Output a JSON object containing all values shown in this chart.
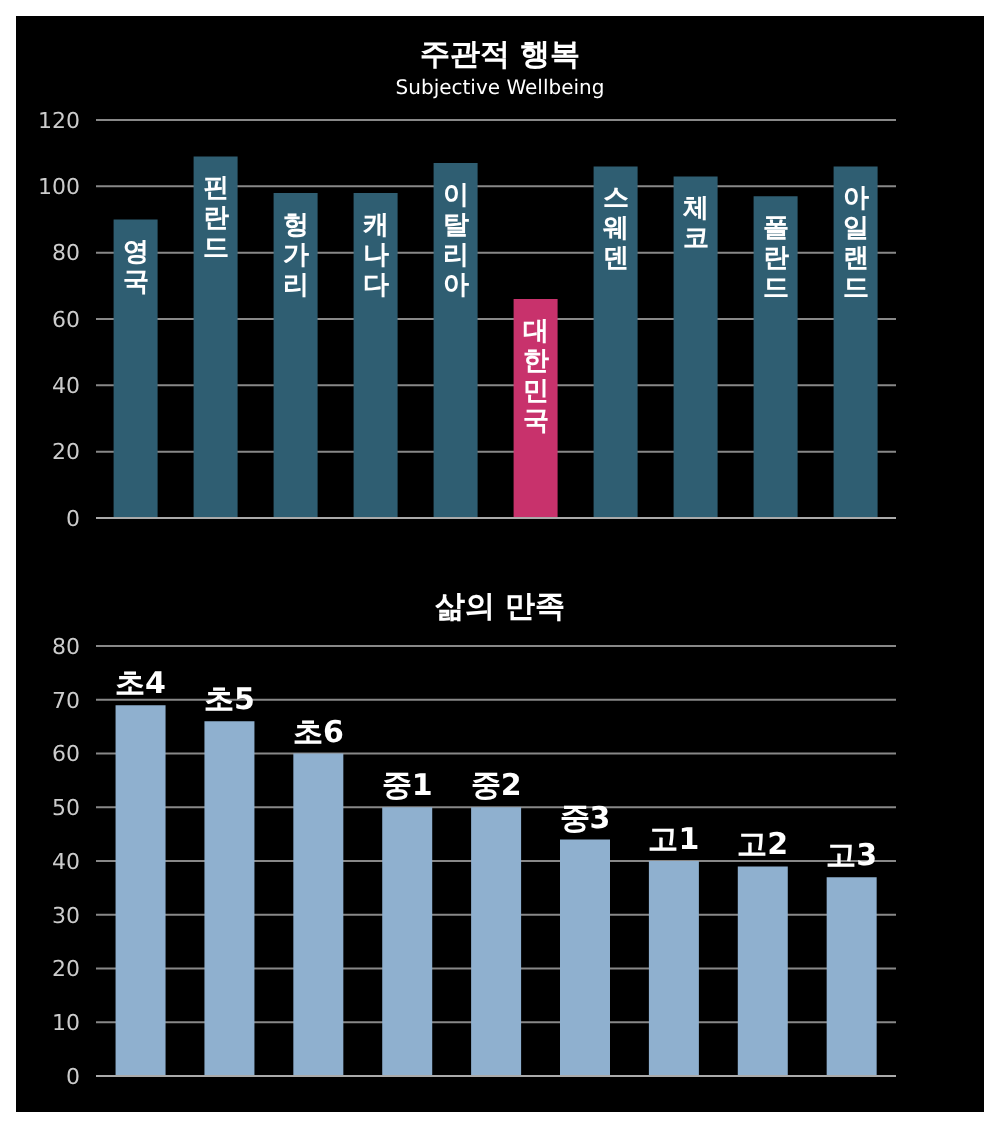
{
  "chart_data": [
    {
      "type": "bar",
      "title": "주관적 행복",
      "subtitle": "Subjective Wellbeing",
      "categories": [
        "영국",
        "핀란드",
        "헝가리",
        "캐나다",
        "이탈리아",
        "대한민국",
        "스웨덴",
        "체코",
        "폴란드",
        "아일랜드"
      ],
      "values": [
        90,
        109,
        98,
        98,
        107,
        66,
        106,
        103,
        97,
        106
      ],
      "colors": [
        "#2f5e72",
        "#2f5e72",
        "#2f5e72",
        "#2f5e72",
        "#2f5e72",
        "#c8326c",
        "#2f5e72",
        "#2f5e72",
        "#2f5e72",
        "#2f5e72"
      ],
      "ylim": [
        0,
        120
      ],
      "yticks": [
        0,
        20,
        40,
        60,
        80,
        100,
        120
      ],
      "grid": "y"
    },
    {
      "type": "bar",
      "title": "삶의 만족",
      "categories": [
        "초4",
        "초5",
        "초6",
        "중1",
        "중2",
        "중3",
        "고1",
        "고2",
        "고3"
      ],
      "values": [
        69,
        66,
        60,
        50,
        50,
        44,
        40,
        39,
        37
      ],
      "color": "#8fb0cf",
      "ylim": [
        0,
        80
      ],
      "yticks": [
        0,
        10,
        20,
        30,
        40,
        50,
        60,
        70,
        80
      ],
      "grid": "y"
    }
  ]
}
